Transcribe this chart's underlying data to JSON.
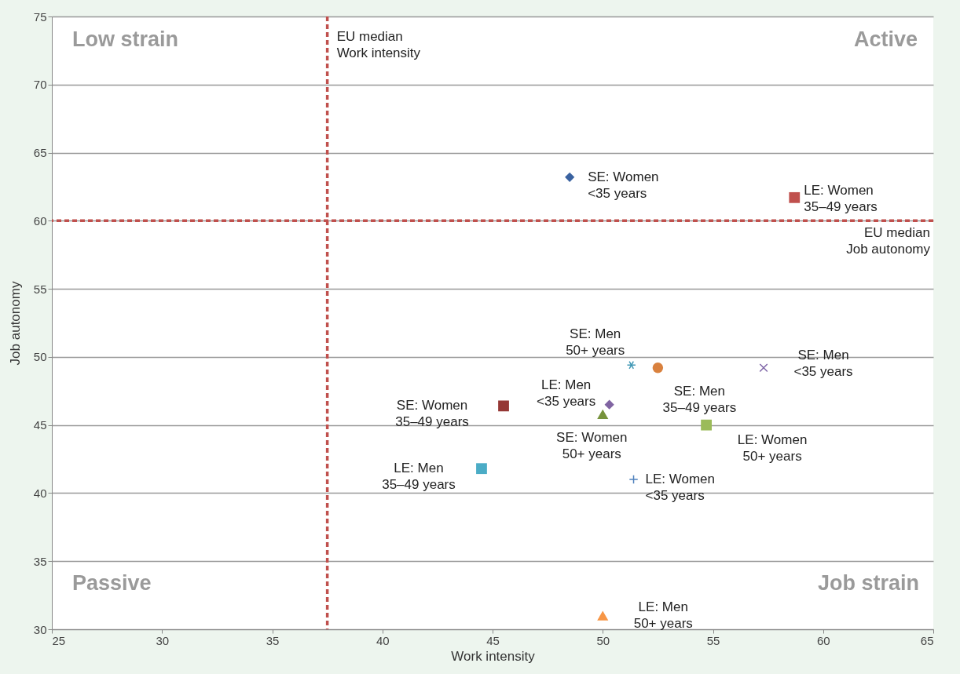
{
  "chart_data": {
    "type": "scatter",
    "xlabel": "Work intensity",
    "ylabel": "Job autonomy",
    "xlim": [
      25,
      65
    ],
    "xticks": [
      25,
      30,
      35,
      40,
      45,
      50,
      55,
      60,
      65
    ],
    "ylim": [
      30,
      75
    ],
    "yticks": [
      30,
      35,
      40,
      45,
      50,
      55,
      60,
      65,
      70,
      75
    ],
    "grid": "y",
    "series": [
      {
        "name": "SE: Women\n<35 years",
        "color": "#3a62a0",
        "marker": "diamond",
        "x": [
          48.5
        ],
        "values": [
          63.2
        ]
      },
      {
        "name": "LE: Women\n35–49 years",
        "color": "#c0504d",
        "marker": "square",
        "x": [
          58.7
        ],
        "values": [
          61.7
        ]
      },
      {
        "name": "SE: Men\n50+ years",
        "color": "#4198b5",
        "x": [
          51.3
        ],
        "values": [
          49.4
        ]
      },
      {
        "name": "SE: Men\n35–49 years",
        "color": "#d9813e",
        "marker": "circle",
        "x": [
          52.5
        ],
        "values": [
          49.2
        ]
      },
      {
        "name": "SE: Men\n<35 years",
        "color": "#7f66a8",
        "marker": "x",
        "x": [
          57.3
        ],
        "values": [
          49.2
        ]
      },
      {
        "name": "LE: Men\n<35 years",
        "color": "#8064a2",
        "marker": "diamond",
        "x": [
          50.3
        ],
        "values": [
          46.5
        ]
      },
      {
        "name": "SE: Women\n35–49 years",
        "color": "#953735",
        "marker": "square",
        "x": [
          45.5
        ],
        "values": [
          46.4
        ]
      },
      {
        "name": "SE: Women\n50+ years",
        "color": "#77933c",
        "marker": "triangle",
        "x": [
          50.0
        ],
        "values": [
          45.8
        ]
      },
      {
        "name": "LE: Women\n50+ years",
        "color": "#9bbb59",
        "marker": "square",
        "x": [
          54.7
        ],
        "values": [
          45.0
        ]
      },
      {
        "name": "LE: Men\n35–49 years",
        "color": "#4bacc6",
        "marker": "square",
        "x": [
          44.5
        ],
        "values": [
          41.8
        ]
      },
      {
        "name": "LE: Women\n<35 years",
        "color": "#4f81bd",
        "marker": "cross",
        "x": [
          51.4
        ],
        "values": [
          41.0
        ]
      },
      {
        "name": "LE: Men\n50+ years",
        "color": "#f79646",
        "marker": "triangle",
        "x": [
          50.0
        ],
        "values": [
          31.0
        ]
      }
    ],
    "ref_lines": [
      {
        "axis": "x",
        "value": 37.5,
        "label": "EU median\nWork intensity",
        "color": "#c0504d",
        "line_style": "dashed"
      },
      {
        "axis": "y",
        "value": 60,
        "label": "EU median\nJob autonomy",
        "color": "#c0504d",
        "line_style": "dashed"
      }
    ],
    "annotations": [
      "Low strain",
      "Active",
      "Passive",
      "Job strain"
    ]
  }
}
